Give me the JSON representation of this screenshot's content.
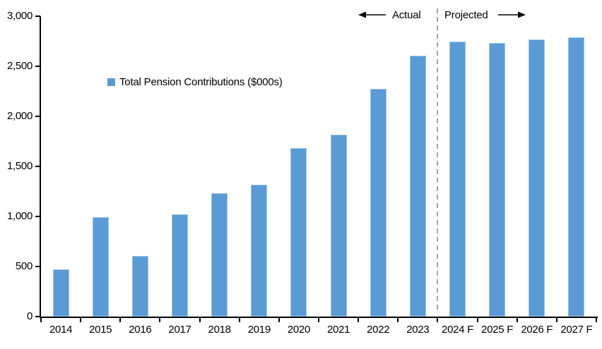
{
  "chart_data": {
    "type": "bar",
    "title": "",
    "legend_label": "Total Pension Contributions ($000s)",
    "legend_position": "inside-top-left",
    "categories": [
      "2014",
      "2015",
      "2016",
      "2017",
      "2018",
      "2019",
      "2020",
      "2021",
      "2022",
      "2023",
      "2024 F",
      "2025 F",
      "2026 F",
      "2027 F"
    ],
    "values": [
      470,
      990,
      605,
      1020,
      1230,
      1315,
      1680,
      1815,
      2275,
      2605,
      2745,
      2735,
      2765,
      2790
    ],
    "ylim": [
      0,
      3000
    ],
    "ytick_step": 500,
    "ytick_labels": [
      "0",
      "500",
      "1,000",
      "1,500",
      "2,000",
      "2,500",
      "3,000"
    ],
    "xlabel": "",
    "ylabel": "",
    "grid": false,
    "annotations": {
      "left_label": "Actual",
      "right_label": "Projected",
      "divider_between": [
        "2023",
        "2024 F"
      ]
    },
    "colors": {
      "bar": "#5B9BD5",
      "bar_border": "#9DC3E6",
      "divider": "#A6A6A6",
      "axis": "#000000",
      "text": "#000000",
      "background": "#FFFFFF"
    }
  }
}
